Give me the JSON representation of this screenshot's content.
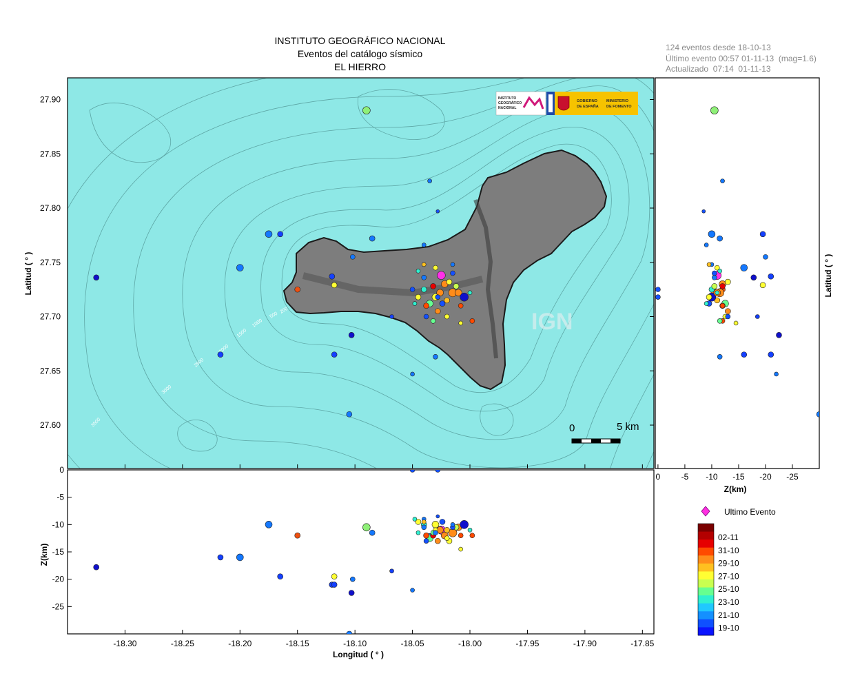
{
  "header": {
    "title_lines": [
      "INSTITUTO GEOGRÁFICO NACIONAL",
      "Eventos del catálogo sísmico",
      "EL HIERRO"
    ],
    "info_lines": [
      "124 eventos desde 18-10-13",
      "Último evento 00:57 01-11-13  (mag=1.6)",
      "Actualizado  07:14  01-11-13"
    ]
  },
  "map": {
    "watermark": "IGN",
    "scale_zero": "0",
    "scale_label": "5 km",
    "contour_labels": [
      "200",
      "500",
      "1000",
      "1500",
      "2000",
      "2500",
      "3000",
      "3500"
    ],
    "logo_left_lines": [
      "INSTITUTO",
      "GEOGRÁFICO",
      "NACIONAL"
    ],
    "logo_right_lines": [
      "GOBIERNO",
      "DE ESPAÑA"
    ],
    "logo_right2_lines": [
      "MINISTERIO",
      "DE FOMENTO"
    ],
    "colors": {
      "sea": "#8ee8e6",
      "land": "#7d7d7d",
      "coast": "#1a1a1a"
    }
  },
  "legend": {
    "last_event_label": "Ultimo Evento",
    "last_event_color": "#ff2fe0",
    "labels": [
      "02-11",
      "31-10",
      "29-10",
      "27-10",
      "25-10",
      "23-10",
      "21-10",
      "19-10"
    ],
    "colors": [
      "#7a0000",
      "#b30000",
      "#e60000",
      "#ff4a00",
      "#ff8c1a",
      "#ffc020",
      "#ffff33",
      "#c8ff50",
      "#66ff90",
      "#30f0d0",
      "#20c8ff",
      "#1490ff",
      "#0f50ff",
      "#0a14ff"
    ]
  },
  "chart_data": [
    {
      "type": "scatter",
      "name": "map",
      "xlabel": "",
      "ylabel": "Latitud ( ° )",
      "xlim": [
        -18.35,
        -17.84
      ],
      "ylim": [
        27.56,
        27.92
      ],
      "yticks": [
        27.6,
        27.65,
        27.7,
        27.75,
        27.8,
        27.85,
        27.9
      ],
      "ytick_labels": [
        "27.60",
        "27.65",
        "27.70",
        "27.75",
        "27.80",
        "27.85",
        "27.90"
      ]
    },
    {
      "type": "scatter",
      "name": "depth-longitude",
      "xlabel": "Longitud ( ° )",
      "ylabel": "Z(km)",
      "xlim": [
        -18.35,
        -17.84
      ],
      "ylim": [
        -30,
        0
      ],
      "xticks": [
        -18.3,
        -18.25,
        -18.2,
        -18.15,
        -18.1,
        -18.05,
        -18.0,
        -17.95,
        -17.9,
        -17.85
      ],
      "xtick_labels": [
        "-18.30",
        "-18.25",
        "-18.20",
        "-18.15",
        "-18.10",
        "-18.05",
        "-18.00",
        "-17.95",
        "-17.90",
        "-17.85"
      ],
      "yticks": [
        0,
        -5,
        -10,
        -15,
        -20,
        -25
      ],
      "ytick_labels": [
        "0",
        "-5",
        "-10",
        "-15",
        "-20",
        "-25"
      ]
    },
    {
      "type": "scatter",
      "name": "depth-latitude",
      "xlabel": "Z(km)",
      "ylabel": "Latitud ( ° )",
      "xlim": [
        0.5,
        -30
      ],
      "ylim": [
        27.56,
        27.92
      ],
      "xticks": [
        0,
        -5,
        -10,
        -15,
        -20,
        -25
      ],
      "xtick_labels": [
        "0",
        "-5",
        "-10",
        "-15",
        "-20",
        "-25"
      ]
    },
    {
      "type": "scatter",
      "name": "events",
      "fields": [
        "lon",
        "lat",
        "depth_km",
        "size",
        "color"
      ],
      "events": [
        [
          -18.09,
          27.89,
          -10.5,
          5.5,
          "#8ff078"
        ],
        [
          -18.035,
          27.825,
          -12.0,
          3.0,
          "#1478ff"
        ],
        [
          -18.028,
          27.797,
          -8.5,
          2.5,
          "#1450ff"
        ],
        [
          -18.175,
          27.776,
          -10.0,
          5.0,
          "#1478ff"
        ],
        [
          -18.165,
          27.776,
          -19.5,
          4.0,
          "#1440ff"
        ],
        [
          -18.085,
          27.772,
          -11.5,
          4.0,
          "#1478ff"
        ],
        [
          -18.04,
          27.766,
          -9.0,
          3.0,
          "#1478ff"
        ],
        [
          -18.102,
          27.755,
          -20.0,
          3.5,
          "#1478ff"
        ],
        [
          -18.2,
          27.745,
          -16.0,
          5.0,
          "#1478ff"
        ],
        [
          -18.325,
          27.736,
          -17.8,
          4.0,
          "#1010cc"
        ],
        [
          -18.12,
          27.737,
          -21.0,
          4.0,
          "#1440ff"
        ],
        [
          -18.118,
          27.729,
          -19.5,
          4.0,
          "#ffff33"
        ],
        [
          -18.15,
          27.725,
          -12.0,
          4.0,
          "#ee5010"
        ],
        [
          -18.025,
          27.738,
          -11.0,
          6.0,
          "#ff30e8"
        ],
        [
          -18.022,
          27.73,
          -12.0,
          5.0,
          "#ff8c1a"
        ],
        [
          -18.015,
          27.722,
          -11.5,
          6.0,
          "#ff8c1a"
        ],
        [
          -18.03,
          27.718,
          -10.0,
          5.0,
          "#ffff33"
        ],
        [
          -18.035,
          27.712,
          -12.5,
          5.0,
          "#66ff90"
        ],
        [
          -18.028,
          27.705,
          -13.0,
          4.0,
          "#ff8c1a"
        ],
        [
          -18.02,
          27.715,
          -11.0,
          4.0,
          "#ffc020"
        ],
        [
          -18.01,
          27.722,
          -10.5,
          5.0,
          "#ff8c1a"
        ],
        [
          -18.005,
          27.718,
          -10.0,
          6.0,
          "#1010cc"
        ],
        [
          -18.04,
          27.725,
          -10.0,
          4.0,
          "#30f0d0"
        ],
        [
          -18.045,
          27.718,
          -9.5,
          4.0,
          "#ffff33"
        ],
        [
          -18.032,
          27.728,
          -12.0,
          4.0,
          "#e60000"
        ],
        [
          -18.018,
          27.732,
          -13.0,
          4.0,
          "#ffff33"
        ],
        [
          -18.012,
          27.728,
          -10.5,
          4.0,
          "#c8ff50"
        ],
        [
          -18.038,
          27.71,
          -12.0,
          4.0,
          "#ff4a00"
        ],
        [
          -18.024,
          27.712,
          -9.5,
          4.0,
          "#1450ff"
        ],
        [
          -18.026,
          27.722,
          -11.0,
          5.0,
          "#ff8c1a"
        ],
        [
          -18.015,
          27.74,
          -10.5,
          3.5,
          "#1450ff"
        ],
        [
          -18.03,
          27.745,
          -11.0,
          3.5,
          "#ffff33"
        ],
        [
          -18.045,
          27.742,
          -11.5,
          3.0,
          "#30f0d0"
        ],
        [
          -18.04,
          27.736,
          -10.5,
          3.5,
          "#1478ff"
        ],
        [
          -18.008,
          27.71,
          -12.0,
          3.5,
          "#ff4a00"
        ],
        [
          -18.0,
          27.722,
          -11.0,
          3.0,
          "#30f0d0"
        ],
        [
          -18.008,
          27.694,
          -14.5,
          3.0,
          "#ffff33"
        ],
        [
          -17.998,
          27.696,
          -12.0,
          3.5,
          "#ff4a00"
        ],
        [
          -18.032,
          27.696,
          -11.5,
          3.5,
          "#66ff90"
        ],
        [
          -18.02,
          27.7,
          -12.5,
          3.5,
          "#ffff33"
        ],
        [
          -18.038,
          27.7,
          -13.0,
          3.5,
          "#1450ff"
        ],
        [
          -18.048,
          27.712,
          -9.0,
          3.0,
          "#30f0d0"
        ],
        [
          -18.015,
          27.748,
          -10.0,
          3.0,
          "#1478ff"
        ],
        [
          -18.04,
          27.748,
          -9.5,
          3.0,
          "#ffc020"
        ],
        [
          -18.103,
          27.683,
          -22.5,
          4.0,
          "#1010cc"
        ],
        [
          -18.068,
          27.7,
          -18.5,
          3.0,
          "#1440ff"
        ],
        [
          -18.118,
          27.665,
          -21.0,
          4.0,
          "#1440ff"
        ],
        [
          -18.03,
          27.663,
          -11.5,
          3.5,
          "#1478ff"
        ],
        [
          -18.05,
          27.647,
          -22.0,
          3.0,
          "#1478ff"
        ],
        [
          -18.217,
          27.665,
          -16.0,
          4.0,
          "#1440ff"
        ],
        [
          -18.05,
          27.725,
          0.0,
          3.5,
          "#1450ff"
        ],
        [
          -18.028,
          27.718,
          0.0,
          3.5,
          "#1450ff"
        ],
        [
          -18.105,
          27.61,
          -30.0,
          4.0,
          "#1478ff"
        ]
      ]
    }
  ]
}
